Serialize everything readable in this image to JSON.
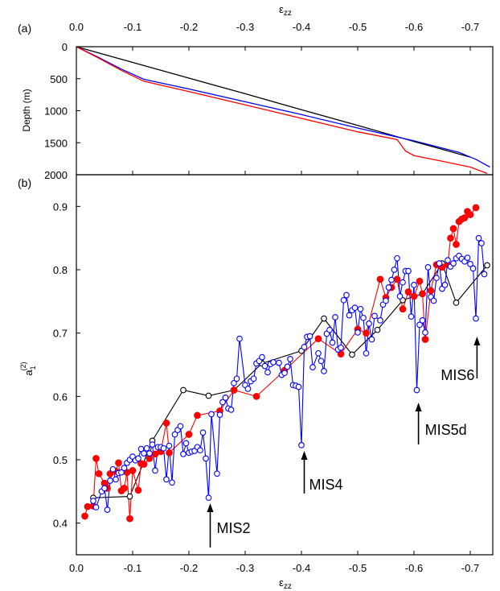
{
  "chart_data": [
    {
      "panel_label": "(a)",
      "type": "line",
      "xlabel_top_main": "ε",
      "xlabel_top_sub": "zz",
      "ylabel": "Depth (m)",
      "xlim": [
        0.0,
        -0.74
      ],
      "ylim": [
        0,
        2000
      ],
      "x_ticks": [
        "0.0",
        "-0.1",
        "-0.2",
        "-0.3",
        "-0.4",
        "-0.5",
        "-0.6",
        "-0.7"
      ],
      "y_ticks": [
        "0",
        "500",
        "1000",
        "1500",
        "2000"
      ],
      "series": [
        {
          "color": "#000000",
          "x": [
            0.0,
            -0.1,
            -0.2,
            -0.3,
            -0.4,
            -0.5,
            -0.6,
            -0.7
          ],
          "y": [
            0,
            245,
            490,
            735,
            985,
            1230,
            1480,
            1725
          ]
        },
        {
          "color": "#0000ff",
          "x": [
            0.0,
            -0.04,
            -0.08,
            -0.12,
            -0.2,
            -0.3,
            -0.4,
            -0.5,
            -0.6,
            -0.68,
            -0.71,
            -0.735
          ],
          "y": [
            0,
            170,
            350,
            510,
            660,
            860,
            1060,
            1270,
            1470,
            1650,
            1760,
            1880
          ]
        },
        {
          "color": "#ff0000",
          "x": [
            0.0,
            -0.04,
            -0.08,
            -0.12,
            -0.2,
            -0.3,
            -0.4,
            -0.5,
            -0.57,
            -0.585,
            -0.6,
            -0.65,
            -0.7,
            -0.73
          ],
          "y": [
            0,
            180,
            370,
            540,
            700,
            910,
            1120,
            1330,
            1450,
            1630,
            1700,
            1790,
            1880,
            1980
          ]
        }
      ]
    },
    {
      "panel_label": "(b)",
      "type": "scatter",
      "xlabel_main": "ε",
      "xlabel_sub": "zz",
      "ylabel_main": "a",
      "ylabel_sub": "1",
      "ylabel_sup": "(2)",
      "xlim": [
        0.0,
        -0.74
      ],
      "ylim": [
        0.35,
        0.95
      ],
      "x_ticks": [
        "0.0",
        "-0.1",
        "-0.2",
        "-0.3",
        "-0.4",
        "-0.5",
        "-0.6",
        "-0.7"
      ],
      "y_ticks": [
        "0.4",
        "0.5",
        "0.6",
        "0.7",
        "0.8",
        "0.9"
      ],
      "annotations": [
        {
          "text": "MIS2",
          "x": -0.235,
          "y": 0.44
        },
        {
          "text": "MIS4",
          "x": -0.405,
          "y": 0.523
        },
        {
          "text": "MIS5d",
          "x": -0.608,
          "y": 0.61
        },
        {
          "text": "MIS6",
          "x": -0.712,
          "y": 0.722
        }
      ],
      "series": [
        {
          "color": "#000000",
          "marker": "open-circle",
          "x": [
            -0.03,
            -0.095,
            -0.135,
            -0.19,
            -0.235,
            -0.28,
            -0.33,
            -0.4,
            -0.44,
            -0.49,
            -0.535,
            -0.58,
            -0.615,
            -0.65,
            -0.675,
            -0.73
          ],
          "y": [
            0.44,
            0.442,
            0.53,
            0.61,
            0.601,
            0.61,
            0.652,
            0.672,
            0.723,
            0.666,
            0.705,
            0.752,
            0.762,
            0.81,
            0.748,
            0.807
          ]
        },
        {
          "color": "#ff0000",
          "marker": "filled-circle",
          "x": [
            -0.015,
            -0.02,
            -0.03,
            -0.035,
            -0.04,
            -0.05,
            -0.055,
            -0.06,
            -0.07,
            -0.075,
            -0.08,
            -0.085,
            -0.09,
            -0.095,
            -0.1,
            -0.11,
            -0.115,
            -0.12,
            -0.13,
            -0.14,
            -0.15,
            -0.16,
            -0.165,
            -0.2,
            -0.215,
            -0.255,
            -0.28,
            -0.32,
            -0.37,
            -0.43,
            -0.47,
            -0.5,
            -0.515,
            -0.54,
            -0.55,
            -0.56,
            -0.57,
            -0.58,
            -0.59,
            -0.6,
            -0.61,
            -0.615,
            -0.62,
            -0.63,
            -0.64,
            -0.65,
            -0.66,
            -0.665,
            -0.67,
            -0.675,
            -0.68,
            -0.685,
            -0.69,
            -0.695,
            -0.7,
            -0.71
          ],
          "y": [
            0.411,
            0.426,
            0.427,
            0.502,
            0.478,
            0.463,
            0.455,
            0.478,
            0.482,
            0.495,
            0.451,
            0.455,
            0.48,
            0.407,
            0.483,
            0.452,
            0.494,
            0.493,
            0.502,
            0.509,
            0.513,
            0.558,
            0.511,
            0.54,
            0.57,
            0.577,
            0.61,
            0.6,
            0.641,
            0.691,
            0.667,
            0.706,
            0.7,
            0.785,
            0.756,
            0.772,
            0.785,
            0.738,
            0.765,
            0.758,
            0.782,
            0.762,
            0.69,
            0.767,
            0.808,
            0.804,
            0.808,
            0.85,
            0.865,
            0.84,
            0.876,
            0.88,
            0.882,
            0.892,
            0.887,
            0.898
          ]
        },
        {
          "color": "#0000ff",
          "marker": "open-circle",
          "x": [
            -0.03,
            -0.035,
            -0.045,
            -0.05,
            -0.055,
            -0.06,
            -0.065,
            -0.07,
            -0.075,
            -0.08,
            -0.085,
            -0.09,
            -0.095,
            -0.1,
            -0.105,
            -0.11,
            -0.115,
            -0.12,
            -0.125,
            -0.13,
            -0.135,
            -0.14,
            -0.145,
            -0.15,
            -0.155,
            -0.16,
            -0.165,
            -0.17,
            -0.175,
            -0.18,
            -0.185,
            -0.19,
            -0.195,
            -0.2,
            -0.205,
            -0.21,
            -0.215,
            -0.22,
            -0.225,
            -0.23,
            -0.235,
            -0.24,
            -0.25,
            -0.255,
            -0.26,
            -0.265,
            -0.27,
            -0.275,
            -0.28,
            -0.285,
            -0.29,
            -0.3,
            -0.305,
            -0.31,
            -0.315,
            -0.32,
            -0.325,
            -0.33,
            -0.335,
            -0.34,
            -0.345,
            -0.35,
            -0.36,
            -0.365,
            -0.37,
            -0.375,
            -0.38,
            -0.385,
            -0.39,
            -0.395,
            -0.4,
            -0.405,
            -0.41,
            -0.415,
            -0.42,
            -0.43,
            -0.435,
            -0.44,
            -0.445,
            -0.45,
            -0.455,
            -0.46,
            -0.465,
            -0.47,
            -0.475,
            -0.48,
            -0.485,
            -0.49,
            -0.495,
            -0.5,
            -0.505,
            -0.51,
            -0.515,
            -0.52,
            -0.525,
            -0.53,
            -0.54,
            -0.545,
            -0.55,
            -0.555,
            -0.56,
            -0.565,
            -0.57,
            -0.575,
            -0.58,
            -0.585,
            -0.59,
            -0.595,
            -0.6,
            -0.605,
            -0.61,
            -0.615,
            -0.62,
            -0.625,
            -0.63,
            -0.635,
            -0.64,
            -0.645,
            -0.65,
            -0.655,
            -0.66,
            -0.665,
            -0.67,
            -0.675,
            -0.68,
            -0.685,
            -0.69,
            -0.695,
            -0.7,
            -0.705,
            -0.71,
            -0.715,
            -0.72,
            -0.725
          ],
          "y": [
            0.435,
            0.425,
            0.45,
            0.455,
            0.421,
            0.467,
            0.485,
            0.469,
            0.479,
            0.48,
            0.487,
            0.495,
            0.5,
            0.505,
            0.499,
            0.502,
            0.517,
            0.51,
            0.518,
            0.51,
            0.524,
            0.483,
            0.52,
            0.52,
            0.518,
            0.469,
            0.522,
            0.464,
            0.54,
            0.547,
            0.553,
            0.509,
            0.526,
            0.511,
            0.513,
            0.514,
            0.52,
            0.515,
            0.543,
            0.502,
            0.44,
            0.572,
            0.478,
            0.571,
            0.591,
            0.598,
            0.581,
            0.579,
            0.621,
            0.628,
            0.691,
            0.618,
            0.612,
            0.624,
            0.628,
            0.652,
            0.656,
            0.662,
            0.648,
            0.638,
            0.651,
            0.654,
            0.653,
            0.634,
            0.637,
            0.647,
            0.659,
            0.618,
            0.617,
            0.615,
            0.523,
            0.678,
            0.694,
            0.695,
            0.646,
            0.668,
            0.656,
            0.64,
            0.699,
            0.705,
            0.685,
            0.725,
            0.674,
            0.677,
            0.752,
            0.76,
            0.728,
            0.736,
            0.74,
            0.701,
            0.738,
            0.724,
            0.668,
            0.715,
            0.69,
            0.727,
            0.72,
            0.745,
            0.751,
            0.772,
            0.784,
            0.8,
            0.818,
            0.758,
            0.78,
            0.798,
            0.798,
            0.726,
            0.776,
            0.61,
            0.713,
            0.72,
            0.701,
            0.804,
            0.757,
            0.751,
            0.787,
            0.81,
            0.77,
            0.776,
            0.815,
            0.805,
            0.81,
            0.818,
            0.822,
            0.817,
            0.813,
            0.819,
            0.809,
            0.802,
            0.723,
            0.85,
            0.842,
            0.793
          ]
        }
      ]
    }
  ]
}
